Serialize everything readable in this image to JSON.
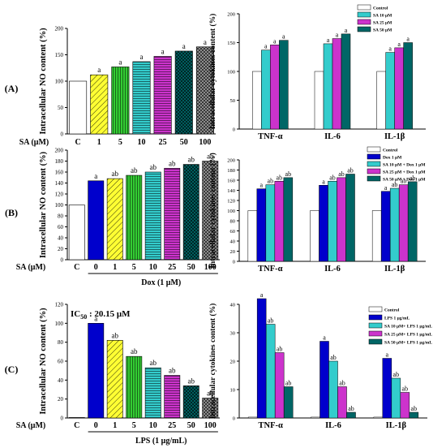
{
  "colors": {
    "control": "#ffffff",
    "palette_no": [
      "#ffff33",
      "#33cc33",
      "#33cccc",
      "#cc33cc",
      "#006666",
      "#999999"
    ],
    "dox": "#0000cc",
    "lps": "#0000cc",
    "cyto_series": [
      "#ffffff",
      "#33cccc",
      "#cc33cc",
      "#006666"
    ],
    "cyto_series_mid": [
      "#ffffff",
      "#0000cc",
      "#33cccc",
      "#cc33cc",
      "#006666"
    ]
  },
  "chart_data": [
    {
      "type": "bar",
      "panel_label": "(A)",
      "ylabel": "Intracellular NO content (%)",
      "xaxis_prefix": "SA (μM)",
      "categories": [
        "C",
        "1",
        "5",
        "10",
        "25",
        "50",
        "100"
      ],
      "values": [
        100,
        112,
        127,
        137,
        147,
        157,
        165
      ],
      "letters": [
        "",
        "a",
        "a",
        "a",
        "a",
        "a",
        "a"
      ],
      "ylim": [
        0,
        200
      ],
      "yticks": [
        "0",
        "50",
        "100",
        "150",
        "200"
      ]
    },
    {
      "type": "bar",
      "panel_label": "",
      "ylabel": "Intracellular cytokines content (%)",
      "categories": [
        "TNF-α",
        "IL-6",
        "IL-1β"
      ],
      "legend": [
        "Control",
        "SA 10 μM",
        "SA 25 μM",
        "SA 50 μM"
      ],
      "series": [
        {
          "values": [
            100,
            100,
            100
          ],
          "letters": [
            "",
            "",
            ""
          ]
        },
        {
          "values": [
            137,
            148,
            133
          ],
          "letters": [
            "a",
            "a",
            "a"
          ]
        },
        {
          "values": [
            146,
            157,
            141
          ],
          "letters": [
            "a",
            "a",
            "a"
          ]
        },
        {
          "values": [
            154,
            165,
            150
          ],
          "letters": [
            "a",
            "a",
            "a"
          ]
        }
      ],
      "ylim": [
        0,
        200
      ],
      "yticks": [
        "0",
        "50",
        "100",
        "150",
        "200"
      ]
    },
    {
      "type": "bar",
      "panel_label": "(B)",
      "ylabel": "Intracellular NO content (%)",
      "xaxis_prefix": "SA (μM)",
      "xlabel": "Dox (1 μM)",
      "categories": [
        "C",
        "0",
        "1",
        "5",
        "10",
        "25",
        "50",
        "100"
      ],
      "values": [
        100,
        144,
        148,
        154,
        160,
        167,
        174,
        180
      ],
      "letters": [
        "",
        "a",
        "ab",
        "ab",
        "ab",
        "ab",
        "ab",
        "ab"
      ],
      "ylim": [
        0,
        200
      ],
      "yticks": [
        "0",
        "20",
        "40",
        "60",
        "80",
        "100",
        "120",
        "140",
        "160",
        "180",
        "200"
      ]
    },
    {
      "type": "bar",
      "panel_label": "",
      "ylabel": "Intracellular cytokines content (%)",
      "categories": [
        "TNF-α",
        "IL-6",
        "IL-1β"
      ],
      "legend": [
        "Control",
        "Dox 1 μM",
        "SA 10 μM + Dox 1 μM",
        "SA 25 μM + Dox 1 μM",
        "SA 50 μM + Dox 1 μM"
      ],
      "series": [
        {
          "values": [
            100,
            100,
            100
          ],
          "letters": [
            "",
            "",
            ""
          ]
        },
        {
          "values": [
            143,
            150,
            138
          ],
          "letters": [
            "a",
            "a",
            "a"
          ]
        },
        {
          "values": [
            151,
            158,
            144
          ],
          "letters": [
            "ab",
            "ab",
            "ab"
          ]
        },
        {
          "values": [
            158,
            165,
            151
          ],
          "letters": [
            "ab",
            "ab",
            "ab"
          ]
        },
        {
          "values": [
            165,
            172,
            157
          ],
          "letters": [
            "ab",
            "ab",
            "ab"
          ]
        }
      ],
      "ylim": [
        0,
        200
      ],
      "yticks": [
        "0",
        "20",
        "40",
        "60",
        "80",
        "100",
        "120",
        "140",
        "160",
        "180",
        "200"
      ]
    },
    {
      "type": "bar",
      "panel_label": "(C)",
      "ylabel": "Intracellular NO content (%)",
      "xaxis_prefix": "SA (μM)",
      "xlabel": "LPS (1 μg/mL)",
      "annotation": "IC50 : 20.15 μM",
      "categories": [
        "C",
        "0",
        "1",
        "5",
        "10",
        "25",
        "50",
        "100"
      ],
      "values": [
        0.5,
        100,
        82,
        65,
        53,
        45,
        34,
        21
      ],
      "letters": [
        "",
        "a",
        "ab",
        "ab",
        "ab",
        "ab",
        "ab",
        "ab"
      ],
      "ylim": [
        0,
        120
      ],
      "yticks": [
        "0",
        "20",
        "40",
        "60",
        "80",
        "100",
        "120"
      ]
    },
    {
      "type": "bar",
      "panel_label": "",
      "ylabel": "Intracellular cytokines content (%)",
      "categories": [
        "TNF-α",
        "IL-6",
        "IL-1β"
      ],
      "legend": [
        "Control",
        "LPS 1 μg/mL",
        "SA 10 μM+ LPS 1 μg/mL",
        "SA 25 μM+ LPS 1 μg/mL",
        "SA 50 μM+ LPS 1 μg/mL"
      ],
      "series": [
        {
          "values": [
            0.3,
            0.3,
            0.3
          ],
          "letters": [
            "",
            "",
            ""
          ]
        },
        {
          "values": [
            42,
            27,
            21
          ],
          "letters": [
            "a",
            "a",
            "a"
          ]
        },
        {
          "values": [
            33,
            20,
            14
          ],
          "letters": [
            "ab",
            "ab",
            "ab"
          ]
        },
        {
          "values": [
            23,
            11,
            9
          ],
          "letters": [
            "ab",
            "ab",
            "ab"
          ]
        },
        {
          "values": [
            11,
            2,
            2
          ],
          "letters": [
            "ab",
            "ab",
            "ab"
          ]
        }
      ],
      "ylim": [
        0,
        40
      ],
      "yticks": [
        "0",
        "10",
        "20",
        "30",
        "40"
      ]
    }
  ]
}
